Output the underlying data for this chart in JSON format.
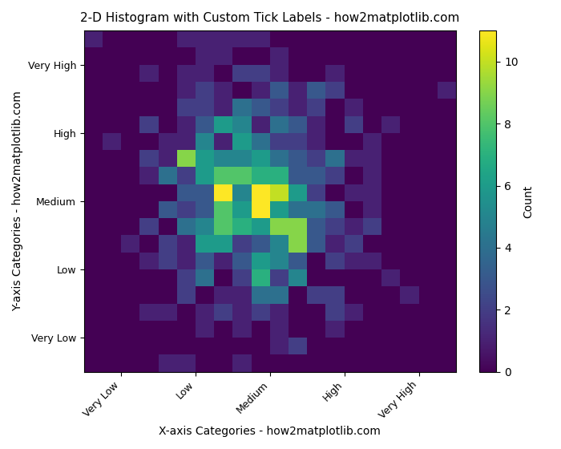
{
  "title": "2-D Histogram with Custom Tick Labels - how2matplotlib.com",
  "xlabel": "X-axis Categories - how2matplotlib.com",
  "ylabel": "Y-axis Categories - how2matplotlib.com",
  "colorbar_label": "Count",
  "x_tick_labels": [
    "Very Low",
    "Low",
    "Medium",
    "High",
    "Very High"
  ],
  "y_tick_labels": [
    "Very Low",
    "Low",
    "Medium",
    "High",
    "Very High"
  ],
  "cmap": "viridis",
  "n_bins": 20,
  "seed": 42,
  "n_samples": 500,
  "figsize": [
    7.0,
    5.6
  ],
  "dpi": 100,
  "title_fontsize": 11,
  "label_fontsize": 10,
  "tick_fontsize": 9,
  "figure_bg": "white",
  "text_color": "black",
  "cbar_text_color": "black"
}
